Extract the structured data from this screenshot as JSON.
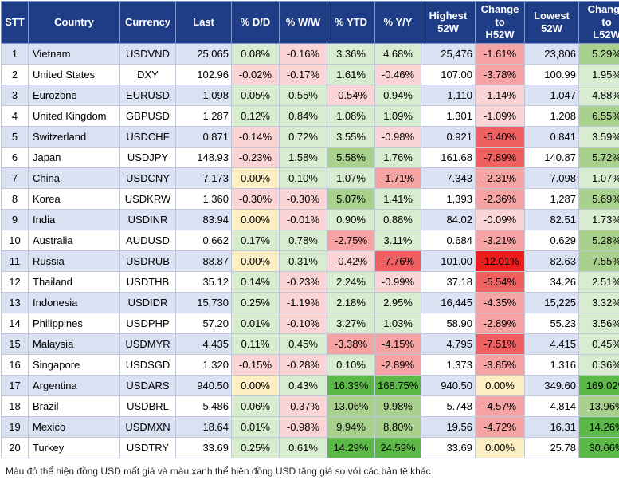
{
  "colors": {
    "header_bg": "#1f3c86",
    "up_strong": "#5cb947",
    "up_mid": "#a9d18e",
    "up_light": "#d8edcf",
    "neutral": "#fcefc4",
    "down_light": "#fbd5d5",
    "down_mid": "#f5a3a3",
    "down_strong": "#f06060",
    "down_max": "#ec1c1c"
  },
  "headers": {
    "stt": "STT",
    "country": "Country",
    "currency": "Currency",
    "last": "Last",
    "dd": "% D/D",
    "ww": "% W/W",
    "ytd": "% YTD",
    "yy": "% Y/Y",
    "high_l1": "Highest",
    "high_l2": "52W",
    "chh_l1": "Change",
    "chh_l2": "to",
    "chh_l3": "H52W",
    "low_l1": "Lowest",
    "low_l2": "52W",
    "chl_l1": "Change",
    "chl_l2": "to",
    "chl_l3": "L52W"
  },
  "rows": [
    {
      "stt": "1",
      "country": "Vietnam",
      "currency": "USDVND",
      "last": "25,065",
      "dd": "0.08%",
      "ww": "-0.16%",
      "ytd": "3.36%",
      "yy": "4.68%",
      "high": "25,476",
      "chh": "-1.61%",
      "low": "23,806",
      "chl": "5.29%"
    },
    {
      "stt": "2",
      "country": "United States",
      "currency": "DXY",
      "last": "102.96",
      "dd": "-0.02%",
      "ww": "-0.17%",
      "ytd": "1.61%",
      "yy": "-0.46%",
      "high": "107.00",
      "chh": "-3.78%",
      "low": "100.99",
      "chl": "1.95%"
    },
    {
      "stt": "3",
      "country": "Eurozone",
      "currency": "EURUSD",
      "last": "1.098",
      "dd": "0.05%",
      "ww": "0.55%",
      "ytd": "-0.54%",
      "yy": "0.94%",
      "high": "1.110",
      "chh": "-1.14%",
      "low": "1.047",
      "chl": "4.88%"
    },
    {
      "stt": "4",
      "country": "United Kingdom",
      "currency": "GBPUSD",
      "last": "1.287",
      "dd": "0.12%",
      "ww": "0.84%",
      "ytd": "1.08%",
      "yy": "1.09%",
      "high": "1.301",
      "chh": "-1.09%",
      "low": "1.208",
      "chl": "6.55%"
    },
    {
      "stt": "5",
      "country": "Switzerland",
      "currency": "USDCHF",
      "last": "0.871",
      "dd": "-0.14%",
      "ww": "0.72%",
      "ytd": "3.55%",
      "yy": "-0.98%",
      "high": "0.921",
      "chh": "-5.40%",
      "low": "0.841",
      "chl": "3.59%"
    },
    {
      "stt": "6",
      "country": "Japan",
      "currency": "USDJPY",
      "last": "148.93",
      "dd": "-0.23%",
      "ww": "1.58%",
      "ytd": "5.58%",
      "yy": "1.76%",
      "high": "161.68",
      "chh": "-7.89%",
      "low": "140.87",
      "chl": "5.72%"
    },
    {
      "stt": "7",
      "country": "China",
      "currency": "USDCNY",
      "last": "7.173",
      "dd": "0.00%",
      "ww": "0.10%",
      "ytd": "1.07%",
      "yy": "-1.71%",
      "high": "7.343",
      "chh": "-2.31%",
      "low": "7.098",
      "chl": "1.07%"
    },
    {
      "stt": "8",
      "country": "Korea",
      "currency": "USDKRW",
      "last": "1,360",
      "dd": "-0.30%",
      "ww": "-0.30%",
      "ytd": "5.07%",
      "yy": "1.41%",
      "high": "1,393",
      "chh": "-2.36%",
      "low": "1,287",
      "chl": "5.69%"
    },
    {
      "stt": "9",
      "country": "India",
      "currency": "USDINR",
      "last": "83.94",
      "dd": "0.00%",
      "ww": "-0.01%",
      "ytd": "0.90%",
      "yy": "0.88%",
      "high": "84.02",
      "chh": "-0.09%",
      "low": "82.51",
      "chl": "1.73%"
    },
    {
      "stt": "10",
      "country": "Australia",
      "currency": "AUDUSD",
      "last": "0.662",
      "dd": "0.17%",
      "ww": "0.78%",
      "ytd": "-2.75%",
      "yy": "3.11%",
      "high": "0.684",
      "chh": "-3.21%",
      "low": "0.629",
      "chl": "5.28%"
    },
    {
      "stt": "11",
      "country": "Russia",
      "currency": "USDRUB",
      "last": "88.87",
      "dd": "0.00%",
      "ww": "0.31%",
      "ytd": "-0.42%",
      "yy": "-7.76%",
      "high": "101.00",
      "chh": "-12.01%",
      "low": "82.63",
      "chl": "7.55%"
    },
    {
      "stt": "12",
      "country": "Thailand",
      "currency": "USDTHB",
      "last": "35.12",
      "dd": "0.14%",
      "ww": "-0.23%",
      "ytd": "2.24%",
      "yy": "-0.99%",
      "high": "37.18",
      "chh": "-5.54%",
      "low": "34.26",
      "chl": "2.51%"
    },
    {
      "stt": "13",
      "country": "Indonesia",
      "currency": "USDIDR",
      "last": "15,730",
      "dd": "0.25%",
      "ww": "-1.19%",
      "ytd": "2.18%",
      "yy": "2.95%",
      "high": "16,445",
      "chh": "-4.35%",
      "low": "15,225",
      "chl": "3.32%"
    },
    {
      "stt": "14",
      "country": "Philippines",
      "currency": "USDPHP",
      "last": "57.20",
      "dd": "0.01%",
      "ww": "-0.10%",
      "ytd": "3.27%",
      "yy": "1.03%",
      "high": "58.90",
      "chh": "-2.89%",
      "low": "55.23",
      "chl": "3.56%"
    },
    {
      "stt": "15",
      "country": "Malaysia",
      "currency": "USDMYR",
      "last": "4.435",
      "dd": "0.11%",
      "ww": "0.45%",
      "ytd": "-3.38%",
      "yy": "-4.15%",
      "high": "4.795",
      "chh": "-7.51%",
      "low": "4.415",
      "chl": "0.45%"
    },
    {
      "stt": "16",
      "country": "Singapore",
      "currency": "USDSGD",
      "last": "1.320",
      "dd": "-0.15%",
      "ww": "-0.28%",
      "ytd": "0.10%",
      "yy": "-2.89%",
      "high": "1.373",
      "chh": "-3.85%",
      "low": "1.316",
      "chl": "0.36%"
    },
    {
      "stt": "17",
      "country": "Argentina",
      "currency": "USDARS",
      "last": "940.50",
      "dd": "0.00%",
      "ww": "0.43%",
      "ytd": "16.33%",
      "yy": "168.75%",
      "high": "940.50",
      "chh": "0.00%",
      "low": "349.60",
      "chl": "169.02%"
    },
    {
      "stt": "18",
      "country": "Brazil",
      "currency": "USDBRL",
      "last": "5.486",
      "dd": "0.06%",
      "ww": "-0.37%",
      "ytd": "13.06%",
      "yy": "9.98%",
      "high": "5.748",
      "chh": "-4.57%",
      "low": "4.814",
      "chl": "13.96%"
    },
    {
      "stt": "19",
      "country": "Mexico",
      "currency": "USDMXN",
      "last": "18.64",
      "dd": "0.01%",
      "ww": "-0.98%",
      "ytd": "9.94%",
      "yy": "8.80%",
      "high": "19.56",
      "chh": "-4.72%",
      "low": "16.31",
      "chl": "14.26%"
    },
    {
      "stt": "20",
      "country": "Turkey",
      "currency": "USDTRY",
      "last": "33.69",
      "dd": "0.25%",
      "ww": "0.61%",
      "ytd": "14.29%",
      "yy": "24.59%",
      "high": "33.69",
      "chh": "0.00%",
      "low": "25.78",
      "chl": "30.66%"
    }
  ],
  "footnote": "Màu đỏ thể hiện đồng USD mất giá và màu xanh thể hiện đồng USD tăng giá so với các bản tệ khác."
}
